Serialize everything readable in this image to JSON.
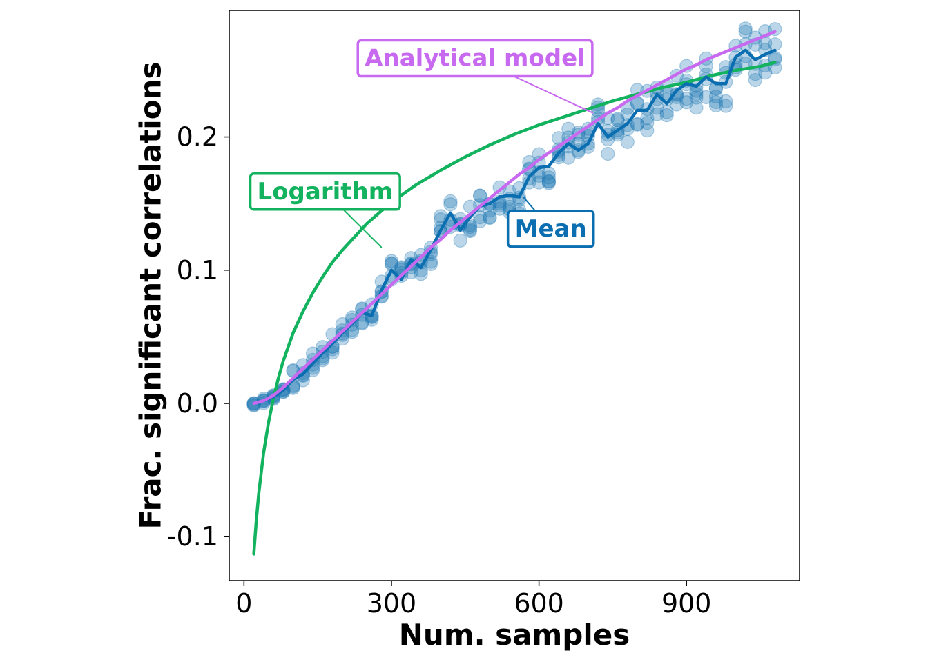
{
  "chart_data": {
    "type": "scatter",
    "xlabel": "Num. samples",
    "ylabel": "Frac. significant correlations",
    "xlim": [
      -30,
      1130
    ],
    "ylim": [
      -0.133,
      0.295
    ],
    "xticks": [
      0,
      300,
      600,
      900
    ],
    "xtick_labels": [
      "0",
      "300",
      "600",
      "900"
    ],
    "yticks": [
      -0.1,
      0.0,
      0.1,
      0.2
    ],
    "ytick_labels": [
      "-0.1",
      "0.0",
      "0.1",
      "0.2"
    ],
    "grid": false,
    "colors": {
      "points": "#1f77b4",
      "mean": "#0a6eb0",
      "analytical": "#c86af0",
      "logarithm": "#12b25e"
    },
    "series": [
      {
        "name": "Mean",
        "kind": "line",
        "x": [
          20,
          40,
          60,
          80,
          100,
          120,
          140,
          160,
          180,
          200,
          220,
          240,
          260,
          280,
          300,
          320,
          340,
          360,
          380,
          400,
          420,
          440,
          460,
          480,
          500,
          520,
          540,
          560,
          580,
          600,
          620,
          640,
          660,
          680,
          700,
          720,
          740,
          760,
          780,
          800,
          820,
          840,
          860,
          880,
          900,
          920,
          940,
          960,
          980,
          1000,
          1020,
          1040,
          1060,
          1080
        ],
        "y": [
          0.0,
          0.002,
          0.005,
          0.01,
          0.018,
          0.022,
          0.03,
          0.038,
          0.045,
          0.053,
          0.06,
          0.068,
          0.066,
          0.085,
          0.1,
          0.093,
          0.108,
          0.102,
          0.115,
          0.13,
          0.143,
          0.13,
          0.14,
          0.148,
          0.15,
          0.155,
          0.156,
          0.155,
          0.17,
          0.177,
          0.178,
          0.188,
          0.195,
          0.19,
          0.195,
          0.21,
          0.2,
          0.205,
          0.21,
          0.22,
          0.22,
          0.232,
          0.225,
          0.235,
          0.24,
          0.238,
          0.245,
          0.24,
          0.24,
          0.26,
          0.265,
          0.258,
          0.262,
          0.265
        ]
      },
      {
        "name": "Analytical model",
        "kind": "line",
        "x": [
          20,
          40,
          60,
          80,
          100,
          120,
          140,
          160,
          180,
          200,
          220,
          240,
          260,
          280,
          300,
          320,
          340,
          360,
          380,
          400,
          420,
          440,
          460,
          480,
          500,
          520,
          540,
          560,
          580,
          600,
          620,
          640,
          660,
          680,
          700,
          720,
          740,
          760,
          780,
          800,
          820,
          840,
          860,
          880,
          900,
          920,
          940,
          960,
          980,
          1000,
          1020,
          1040,
          1060,
          1080
        ],
        "y": [
          0.0,
          0.002,
          0.006,
          0.012,
          0.019,
          0.026,
          0.033,
          0.04,
          0.047,
          0.054,
          0.061,
          0.068,
          0.075,
          0.082,
          0.089,
          0.096,
          0.103,
          0.11,
          0.117,
          0.123,
          0.13,
          0.136,
          0.142,
          0.148,
          0.154,
          0.16,
          0.166,
          0.172,
          0.177,
          0.183,
          0.188,
          0.193,
          0.198,
          0.203,
          0.208,
          0.213,
          0.218,
          0.222,
          0.227,
          0.231,
          0.235,
          0.239,
          0.243,
          0.247,
          0.251,
          0.254,
          0.258,
          0.261,
          0.264,
          0.267,
          0.27,
          0.273,
          0.276,
          0.279
        ]
      },
      {
        "name": "Logarithm",
        "kind": "line",
        "x": [
          20,
          25,
          30,
          35,
          40,
          50,
          60,
          70,
          80,
          100,
          120,
          140,
          160,
          180,
          200,
          250,
          300,
          350,
          400,
          450,
          500,
          550,
          600,
          650,
          700,
          750,
          800,
          850,
          900,
          950,
          1000,
          1050,
          1080
        ],
        "y": [
          -0.113,
          -0.088,
          -0.068,
          -0.052,
          -0.037,
          -0.014,
          0.004,
          0.019,
          0.032,
          0.053,
          0.069,
          0.083,
          0.095,
          0.106,
          0.115,
          0.135,
          0.151,
          0.164,
          0.175,
          0.185,
          0.194,
          0.202,
          0.209,
          0.215,
          0.221,
          0.227,
          0.232,
          0.237,
          0.241,
          0.246,
          0.25,
          0.253,
          0.256
        ]
      }
    ],
    "annotations": [
      {
        "text": "Analytical model",
        "series": "Analytical model",
        "point": [
          710,
          0.218
        ],
        "label_at": [
          470,
          0.259
        ]
      },
      {
        "text": "Logarithm",
        "series": "Logarithm",
        "point": [
          280,
          0.117
        ],
        "label_at": [
          165,
          0.159
        ]
      },
      {
        "text": "Mean",
        "series": "Mean",
        "point": [
          568,
          0.155
        ],
        "label_at": [
          624,
          0.131
        ]
      }
    ]
  }
}
